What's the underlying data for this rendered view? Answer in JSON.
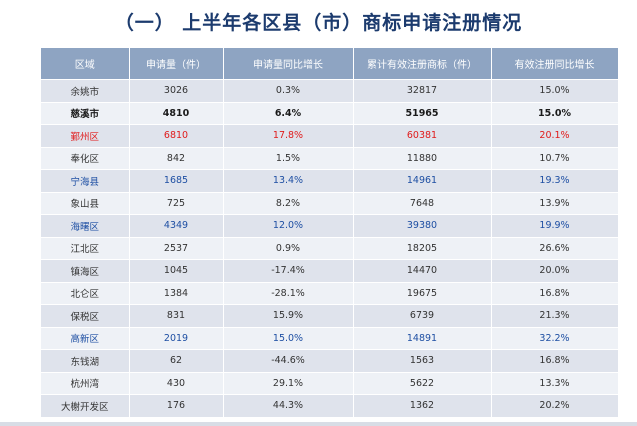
{
  "title": "（一）  上半年各区县（市）商标申请注册情况",
  "table": {
    "headers": [
      "区域",
      "申请量（件）",
      "申请量同比增长",
      "累计有效注册商标（件）",
      "有效注册同比增长"
    ],
    "rows": [
      {
        "style": "normal",
        "cells": [
          "余姚市",
          "3026",
          "0.3%",
          "32817",
          "15.0%"
        ]
      },
      {
        "style": "dark",
        "cells": [
          "慈溪市",
          "4810",
          "6.4%",
          "51965",
          "15.0%"
        ]
      },
      {
        "style": "red",
        "cells": [
          "鄞州区",
          "6810",
          "17.8%",
          "60381",
          "20.1%"
        ]
      },
      {
        "style": "normal",
        "cells": [
          "奉化区",
          "842",
          "1.5%",
          "11880",
          "10.7%"
        ]
      },
      {
        "style": "blue",
        "cells": [
          "宁海县",
          "1685",
          "13.4%",
          "14961",
          "19.3%"
        ]
      },
      {
        "style": "normal",
        "cells": [
          "象山县",
          "725",
          "8.2%",
          "7648",
          "13.9%"
        ]
      },
      {
        "style": "blue",
        "cells": [
          "海曙区",
          "4349",
          "12.0%",
          "39380",
          "19.9%"
        ]
      },
      {
        "style": "normal",
        "cells": [
          "江北区",
          "2537",
          "0.9%",
          "18205",
          "26.6%"
        ]
      },
      {
        "style": "normal",
        "cells": [
          "镇海区",
          "1045",
          "-17.4%",
          "14470",
          "20.0%"
        ]
      },
      {
        "style": "normal",
        "cells": [
          "北仑区",
          "1384",
          "-28.1%",
          "19675",
          "16.8%"
        ]
      },
      {
        "style": "normal",
        "cells": [
          "保税区",
          "831",
          "15.9%",
          "6739",
          "21.3%"
        ]
      },
      {
        "style": "blue",
        "cells": [
          "高新区",
          "2019",
          "15.0%",
          "14891",
          "32.2%"
        ]
      },
      {
        "style": "normal",
        "cells": [
          "东钱湖",
          "62",
          "-44.6%",
          "1563",
          "16.8%"
        ]
      },
      {
        "style": "normal",
        "cells": [
          "杭州湾",
          "430",
          "29.1%",
          "5622",
          "13.3%"
        ]
      },
      {
        "style": "normal",
        "cells": [
          "大榭开发区",
          "176",
          "44.3%",
          "1362",
          "20.2%"
        ]
      }
    ]
  },
  "colors": {
    "title": "#1c3b6e",
    "header_bg": "#8ea4c2",
    "row_odd": "#dfe3ec",
    "row_even": "#eef1f6",
    "highlight_red": "#e01b1b",
    "highlight_blue": "#1e4fa3"
  }
}
